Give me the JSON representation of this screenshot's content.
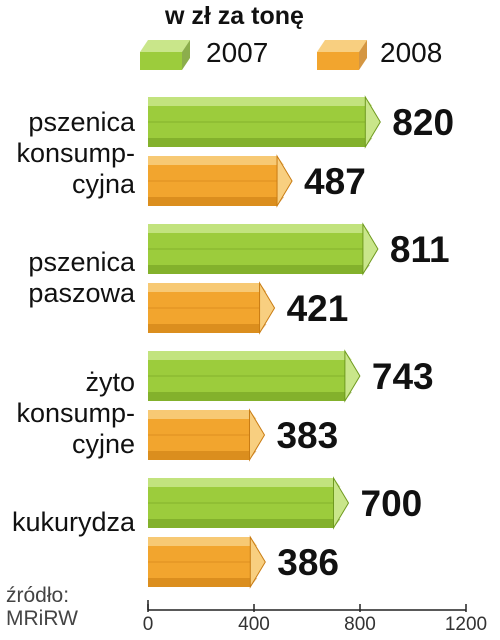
{
  "chart_data": {
    "type": "bar",
    "orientation": "horizontal",
    "unit_label": "w zł za tonę",
    "categories": [
      "pszenica\nkonsump-\ncyjna",
      "pszenica\npaszowa",
      "żyto\nkonsump-\ncyjne",
      "kukurydza"
    ],
    "series": [
      {
        "name": "2007",
        "values": [
          820,
          811,
          743,
          700
        ],
        "color": "#9ccc3c"
      },
      {
        "name": "2008",
        "values": [
          487,
          421,
          383,
          386
        ],
        "color": "#f2a52e"
      }
    ],
    "xticks": [
      0,
      400,
      800,
      1200
    ],
    "xlim": [
      0,
      1200
    ],
    "legend_position": "top",
    "source": "źródło:\nMRiRW"
  }
}
